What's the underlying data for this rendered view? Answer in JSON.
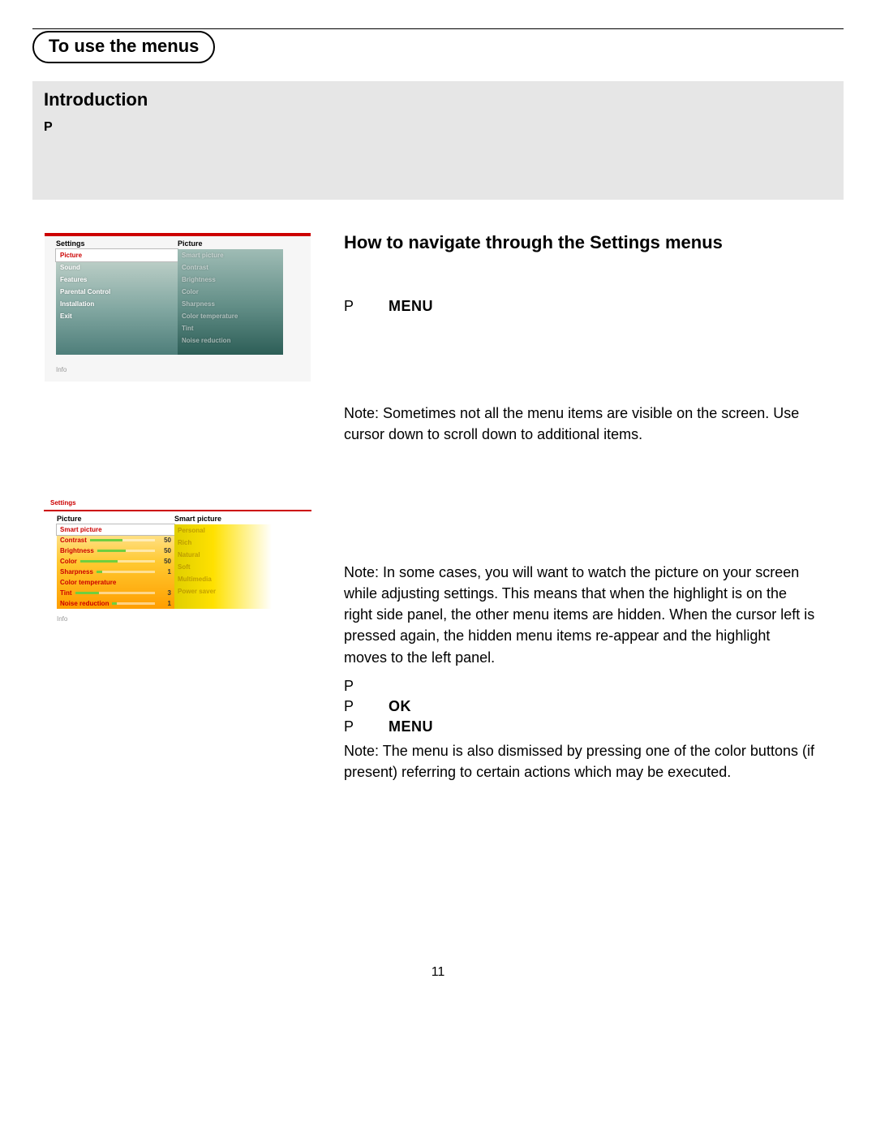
{
  "page": {
    "title_pill": "To use the menus",
    "page_number": "11"
  },
  "intro": {
    "heading": "Introduction",
    "p_mark": "P"
  },
  "right": {
    "heading": "How to navigate through the Settings menus",
    "step1_p": "P",
    "step1_bold": "MENU",
    "note1": "Note: Sometimes not all the menu items are visible on the screen. Use cursor down to scroll down to additional items.",
    "note2": "Note: In some cases, you will want to watch the picture on your screen while adjusting settings. This means that when the highlight is on the right side panel, the other menu items are hidden. When the cursor left is pressed again, the hidden menu items re-appear and the highlight moves to the left panel.",
    "step_a_p": "P",
    "step_b_p": "P",
    "step_b_bold": "OK",
    "step_c_p": "P",
    "step_c_bold": "MENU",
    "note3": "Note: The menu is also dismissed by pressing one of the color buttons (if present) referring to certain actions which may be executed."
  },
  "menu1": {
    "left_header": "Settings",
    "right_header": "Picture",
    "left_items": [
      "Picture",
      "Sound",
      "Features",
      "Parental Control",
      "Installation",
      "Exit"
    ],
    "right_items": [
      "Smart picture",
      "Contrast",
      "Brightness",
      "Color",
      "Sharpness",
      "Color temperature",
      "Tint",
      "Noise reduction"
    ],
    "info": "Info",
    "selected_left_index": 0
  },
  "menu2": {
    "crumb": "Settings",
    "left_header": "Picture",
    "right_header": "Smart picture",
    "rows": [
      {
        "label": "Smart picture",
        "value": "",
        "fill": 0,
        "selected": true,
        "hot": false
      },
      {
        "label": "Contrast",
        "value": "50",
        "fill": 50,
        "selected": false,
        "hot": true
      },
      {
        "label": "Brightness",
        "value": "50",
        "fill": 50,
        "selected": false,
        "hot": true
      },
      {
        "label": "Color",
        "value": "50",
        "fill": 50,
        "selected": false,
        "hot": true
      },
      {
        "label": "Sharpness",
        "value": "1",
        "fill": 10,
        "selected": false,
        "hot": true
      },
      {
        "label": "Color temperature",
        "value": "",
        "fill": 0,
        "selected": false,
        "hot": true
      },
      {
        "label": "Tint",
        "value": "3",
        "fill": 30,
        "selected": false,
        "hot": true
      },
      {
        "label": "Noise reduction",
        "value": "1",
        "fill": 10,
        "selected": false,
        "hot": true
      }
    ],
    "right_items": [
      "Personal",
      "Rich",
      "Natural",
      "Soft",
      "Multimedia",
      "Power saver"
    ],
    "info": "Info"
  },
  "colors": {
    "accent_red": "#cc0000",
    "band_gray": "#e6e6e6"
  }
}
